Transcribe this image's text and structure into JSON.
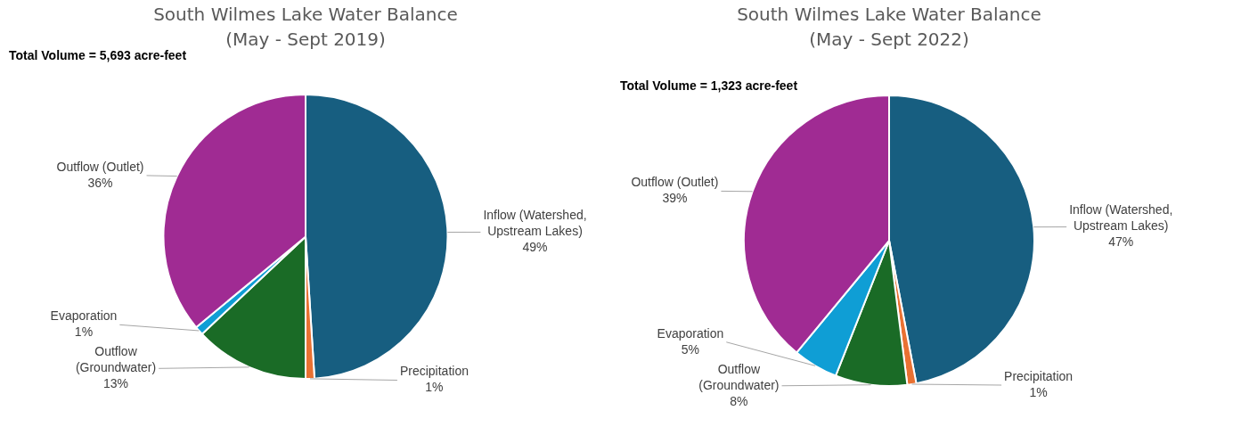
{
  "chart_data": [
    {
      "type": "pie",
      "title": "South Wilmes Lake Water Balance",
      "subtitle": "(May - Sept 2019)",
      "annotations": [
        "Total Volume = 5,693 acre-feet"
      ],
      "categories": [
        "Inflow (Watershed, Upstream Lakes)",
        "Precipitation",
        "Outflow (Groundwater)",
        "Evaporation",
        "Outflow (Outlet)"
      ],
      "values": [
        49,
        1,
        13,
        1,
        36
      ],
      "value_labels": [
        "49%",
        "1%",
        "13%",
        "1%",
        "36%"
      ],
      "colors": [
        "#175e80",
        "#e97132",
        "#1a6b26",
        "#0f9ed5",
        "#a02b93"
      ]
    },
    {
      "type": "pie",
      "title": "South Wilmes Lake Water Balance",
      "subtitle": "(May - Sept 2022)",
      "annotations": [
        "Total Volume = 1,323 acre-feet"
      ],
      "categories": [
        "Inflow (Watershed, Upstream Lakes)",
        "Precipitation",
        "Outflow (Groundwater)",
        "Evaporation",
        "Outflow (Outlet)"
      ],
      "values": [
        47,
        1,
        8,
        5,
        39
      ],
      "value_labels": [
        "47%",
        "1%",
        "8%",
        "5%",
        "39%"
      ],
      "colors": [
        "#175e80",
        "#e97132",
        "#1a6b26",
        "#0f9ed5",
        "#a02b93"
      ]
    }
  ]
}
